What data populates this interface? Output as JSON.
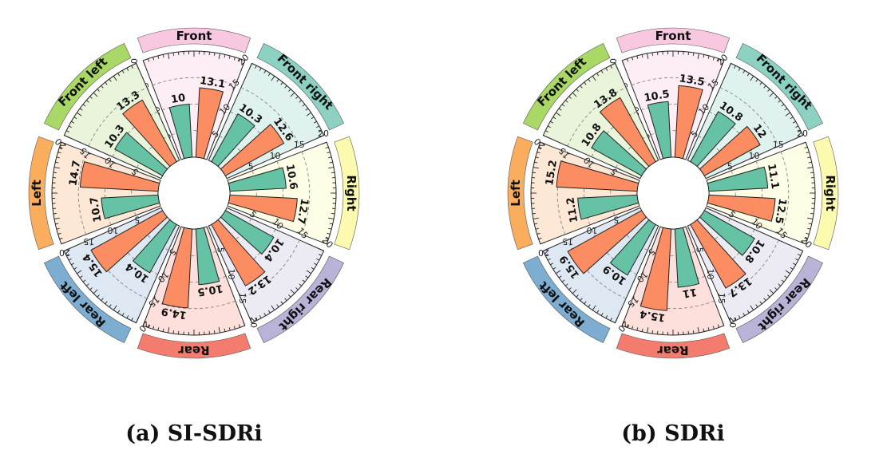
{
  "chart_data": [
    {
      "type": "bar",
      "subtype": "circular-grouped-bar",
      "title": "(a) SI-SDRi",
      "categories": [
        "Front",
        "Front right",
        "Right",
        "Rear right",
        "Rear",
        "Rear left",
        "Left",
        "Front left"
      ],
      "category_colors": [
        "#f7c8e0",
        "#8dd1c2",
        "#fcfaae",
        "#b9b3d8",
        "#f47c6f",
        "#7eadd2",
        "#f9ad5d",
        "#a9d866"
      ],
      "sector_fills": [
        "#fdeef6",
        "#dff2ee",
        "#fefee6",
        "#ecebf4",
        "#fde0dc",
        "#dde8f2",
        "#fde8d6",
        "#eaf4da"
      ],
      "series": [
        {
          "color": "#66c2a5",
          "values": [
            10,
            10.3,
            10.6,
            10.4,
            10.5,
            10.4,
            10.7,
            10.3
          ]
        },
        {
          "color": "#fc8d62",
          "values": [
            13.1,
            12.6,
            12.7,
            13.2,
            14.9,
            15.4,
            14.7,
            13.3
          ]
        }
      ],
      "radial_ticks": [
        "5",
        "10",
        "15",
        "20"
      ],
      "ylim": [
        0,
        20
      ],
      "grid": true
    },
    {
      "type": "bar",
      "subtype": "circular-grouped-bar",
      "title": "(b) SDRi",
      "categories": [
        "Front",
        "Front right",
        "Right",
        "Rear right",
        "Rear",
        "Rear left",
        "Left",
        "Front left"
      ],
      "category_colors": [
        "#f7c8e0",
        "#8dd1c2",
        "#fcfaae",
        "#b9b3d8",
        "#f47c6f",
        "#7eadd2",
        "#f9ad5d",
        "#a9d866"
      ],
      "sector_fills": [
        "#fdeef6",
        "#dff2ee",
        "#fefee6",
        "#ecebf4",
        "#fde0dc",
        "#dde8f2",
        "#fde8d6",
        "#eaf4da"
      ],
      "series": [
        {
          "color": "#66c2a5",
          "values": [
            10.5,
            10.8,
            11.1,
            10.8,
            11,
            10.9,
            11.2,
            10.8
          ]
        },
        {
          "color": "#fc8d62",
          "values": [
            13.5,
            12,
            12.5,
            13.7,
            15.4,
            15.9,
            15.2,
            13.8
          ]
        }
      ],
      "radial_ticks": [
        "5",
        "10",
        "15",
        "20"
      ],
      "ylim": [
        0,
        20
      ],
      "grid": true
    }
  ]
}
